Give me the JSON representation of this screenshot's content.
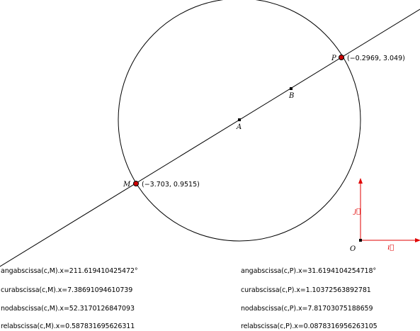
{
  "points": {
    "M": {
      "label": "M",
      "coords": "(−3.703, 0.9515)"
    },
    "P": {
      "label": "P",
      "coords": "(−0.2969, 3.049)"
    },
    "A": {
      "label": "A"
    },
    "B": {
      "label": "B"
    },
    "O": {
      "label": "O"
    }
  },
  "axes": {
    "i_label": "ı⃗",
    "j_label": "ȷ⃗",
    "color": "#e00000"
  },
  "point_color": "#cc0000",
  "readouts": {
    "left": [
      "angabscissa(c,M).x=211.619410425472°",
      "curabscissa(c,M).x=7.38691094610739",
      "nodabscissa(c,M).x=52.3170126847093",
      "relabscissa(c,M).x=0.587831695626311"
    ],
    "right": [
      "angabscissa(c,P).x=31.6194104254718°",
      "curabscissa(c,P).x=1.10372563892781",
      "nodabscissa(c,P).x=7.81703075188659",
      "relabscissa(c,P).x=0.0878316956263105"
    ]
  }
}
